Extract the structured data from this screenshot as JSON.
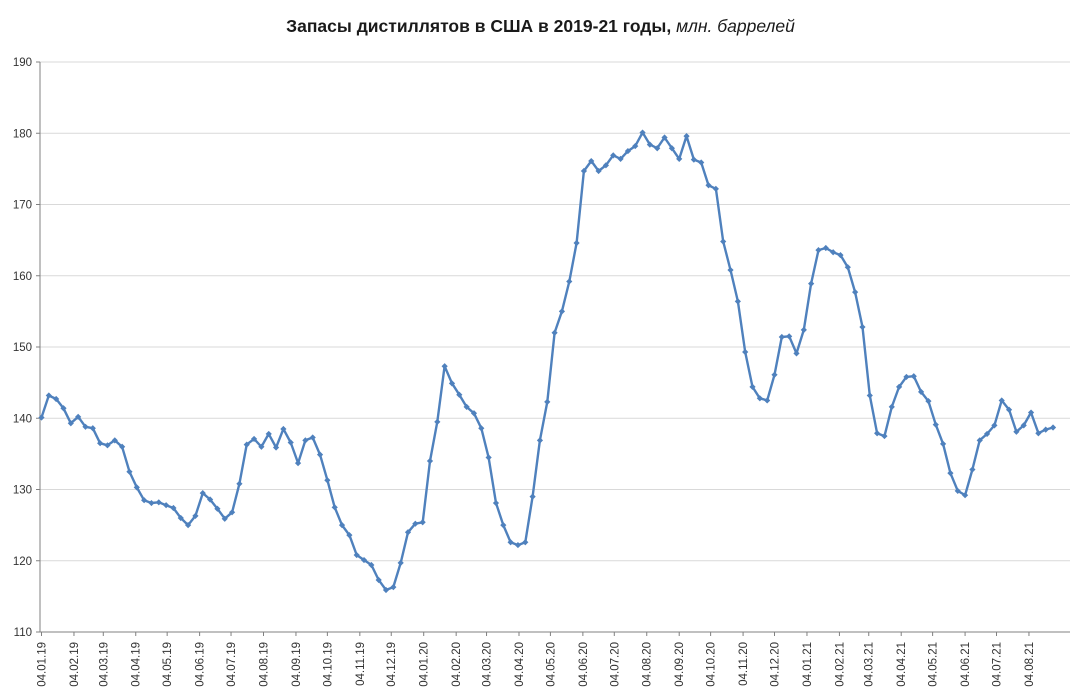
{
  "title": {
    "main": "Запасы дистиллятов в США в 2019-21 годы,",
    "suffix": " млн. баррелей"
  },
  "chart_data": {
    "type": "line",
    "title": "Запасы дистиллятов в США в 2019-21 годы, млн. баррелей",
    "series_name": "Запасы дистиллятов в США, млн. баррелей",
    "x_start_date": "04.01.19",
    "x_step": "weekly",
    "values": [
      140.1,
      143.2,
      142.7,
      141.4,
      139.3,
      140.2,
      138.8,
      138.6,
      136.5,
      136.2,
      136.9,
      136.0,
      132.5,
      130.3,
      128.5,
      128.1,
      128.2,
      127.8,
      127.4,
      126.0,
      125.0,
      126.3,
      129.5,
      128.6,
      127.3,
      125.9,
      126.8,
      130.8,
      136.3,
      137.1,
      136.0,
      137.8,
      135.9,
      138.5,
      136.6,
      133.7,
      136.9,
      137.3,
      134.9,
      131.3,
      127.5,
      125.0,
      123.6,
      120.8,
      120.1,
      119.4,
      117.3,
      115.9,
      116.3,
      119.7,
      124.0,
      125.2,
      125.4,
      134.0,
      139.5,
      147.3,
      144.9,
      143.3,
      141.6,
      140.7,
      138.6,
      134.5,
      128.1,
      125.0,
      122.6,
      122.2,
      122.6,
      129.0,
      136.9,
      142.3,
      152.0,
      155.0,
      159.2,
      164.6,
      174.7,
      176.1,
      174.7,
      175.5,
      176.9,
      176.4,
      177.5,
      178.2,
      180.1,
      178.4,
      177.9,
      179.4,
      177.9,
      176.4,
      179.6,
      176.3,
      175.9,
      172.7,
      172.2,
      164.8,
      160.8,
      156.4,
      149.3,
      144.4,
      142.8,
      142.5,
      146.1,
      151.4,
      151.5,
      149.1,
      152.4,
      158.9,
      163.6,
      163.9,
      163.3,
      162.9,
      161.2,
      157.7,
      152.8,
      143.2,
      137.9,
      137.5,
      141.6,
      144.4,
      145.8,
      145.9,
      143.7,
      142.4,
      139.1,
      136.4,
      132.3,
      129.8,
      129.2,
      132.8,
      136.9,
      137.8,
      139.0,
      142.5,
      141.2,
      138.1,
      139.0,
      140.8,
      137.9,
      138.4,
      138.7
    ],
    "x_tick_labels": [
      "04.01.19",
      "04.02.19",
      "04.03.19",
      "04.04.19",
      "04.05.19",
      "04.06.19",
      "04.07.19",
      "04.08.19",
      "04.09.19",
      "04.10.19",
      "04.11.19",
      "04.12.19",
      "04.01.20",
      "04.02.20",
      "04.03.20",
      "04.04.20",
      "04.05.20",
      "04.06.20",
      "04.07.20",
      "04.08.20",
      "04.09.20",
      "04.10.20",
      "04.11.20",
      "04.12.20",
      "04.01.21",
      "04.02.21",
      "04.03.21",
      "04.04.21",
      "04.05.21",
      "04.06.21",
      "04.07.21",
      "04.08.21"
    ],
    "y_ticks": [
      110,
      120,
      130,
      140,
      150,
      160,
      170,
      180,
      190
    ],
    "ylim": [
      110,
      190
    ],
    "grid": "horizontal",
    "legend": "none",
    "line_color": "#4F81BD",
    "marker": "diamond",
    "gridline_color": "#D9D9D9",
    "axis_color": "#808080",
    "label_color": "#333333"
  }
}
